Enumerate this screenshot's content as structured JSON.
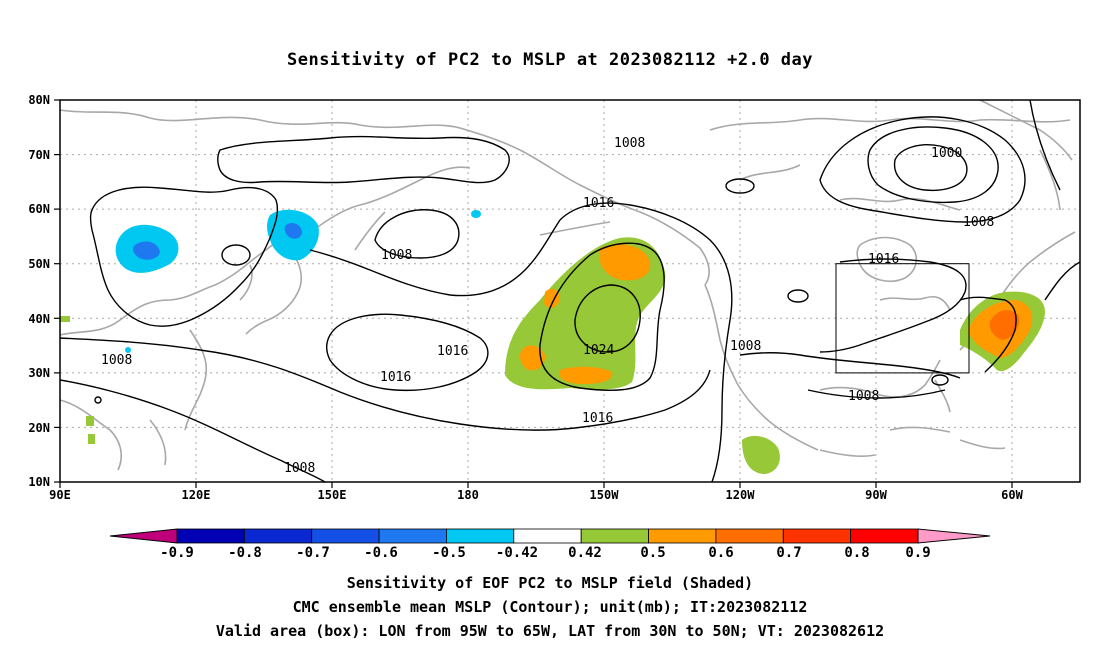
{
  "title": "Sensitivity of PC2 to MSLP at 2023082112 +2.0 day",
  "lat_labels": [
    "80N",
    "70N",
    "60N",
    "50N",
    "40N",
    "30N",
    "20N",
    "10N"
  ],
  "lon_labels": [
    "90E",
    "120E",
    "150E",
    "180",
    "150W",
    "120W",
    "90W",
    "60W"
  ],
  "contour_labels": [
    "1008",
    "1000",
    "1008",
    "1016",
    "1008",
    "1016",
    "1016",
    "1024",
    "1008",
    "1016",
    "1008",
    "1008",
    "1016",
    "1008"
  ],
  "colorbar": {
    "labels": [
      "-0.9",
      "-0.8",
      "-0.7",
      "-0.6",
      "-0.5",
      "-0.42",
      "0.42",
      "0.5",
      "0.6",
      "0.7",
      "0.8",
      "0.9"
    ],
    "colors": [
      "#c0007a",
      "#0000b4",
      "#0a28d2",
      "#1450e6",
      "#1e78f0",
      "#00c8f0",
      "#ffffff",
      "#96c837",
      "#ff9b00",
      "#ff6e00",
      "#ff3200",
      "#ff0000",
      "#ff9bc8"
    ]
  },
  "footer": {
    "line1": "Sensitivity of EOF PC2 to MSLP field (Shaded)",
    "line2": "CMC ensemble mean MSLP (Contour); unit(mb); IT:2023082112",
    "line3": "Valid area (box): LON from 95W to 65W, LAT from 30N to 50N; VT: 2023082612"
  }
}
